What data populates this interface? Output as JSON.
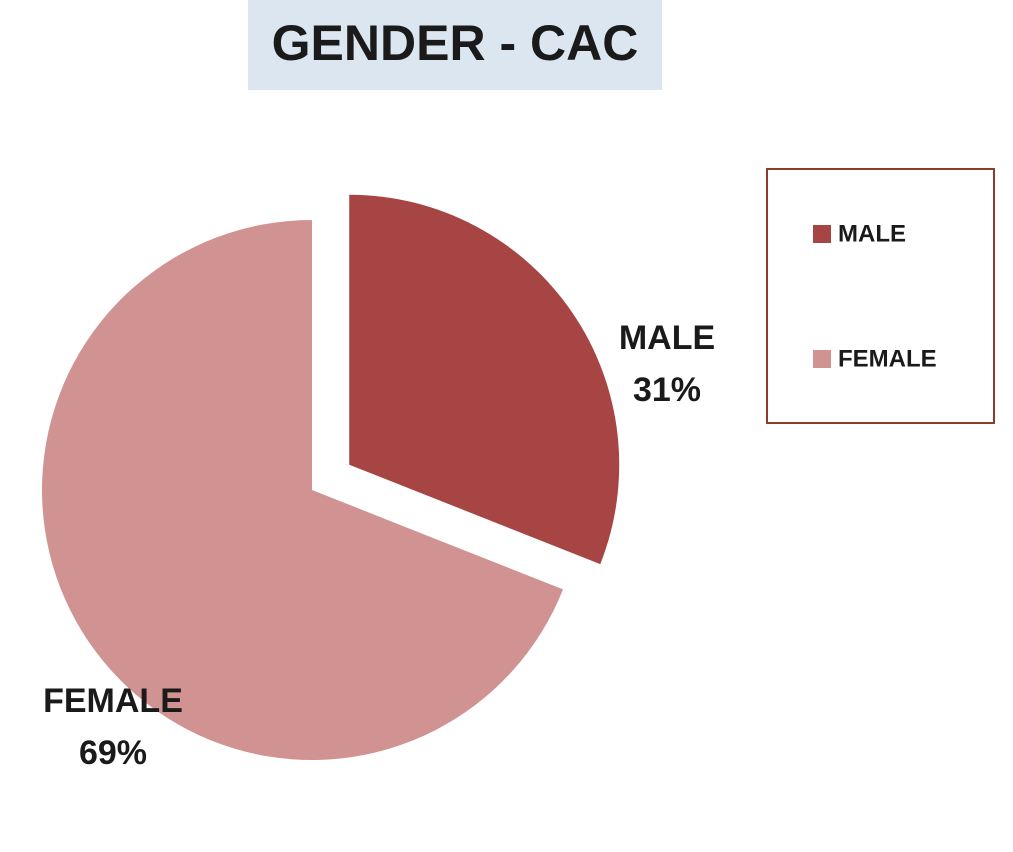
{
  "chart_data": {
    "type": "pie",
    "title": "GENDER - CAC",
    "categories": [
      "MALE",
      "FEMALE"
    ],
    "values": [
      31,
      69
    ],
    "value_labels": [
      "31%",
      "69%"
    ],
    "colors": [
      "#a64543",
      "#d19392"
    ],
    "legend": "right"
  }
}
